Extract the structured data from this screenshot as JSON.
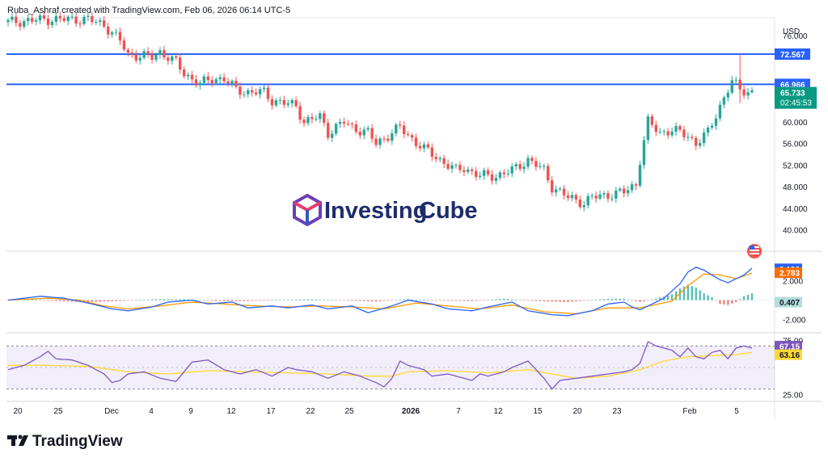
{
  "attribution": "Ruba_Ashraf created with TradingView.com, Feb 06, 2026 06:14 UTC-5",
  "currency": "USD",
  "watermark": {
    "brand_part1": "Investing",
    "brand_part2": "Cube"
  },
  "footer_logo": "TradingView",
  "colors": {
    "up": "#26a69a",
    "down": "#ef5350",
    "hline": "#2962ff",
    "macd": "#2962ff",
    "signal": "#ff9800",
    "rsi": "#7e57c2",
    "rsi_ma": "#fdd835",
    "price_tag": "#089981"
  },
  "chart_data": [
    {
      "type": "candlestick",
      "y_ticks": [
        "76.000",
        "60.000",
        "56.000",
        "52.000",
        "48.000",
        "44.000",
        "40.000"
      ],
      "ylim": [
        36.5,
        79
      ],
      "x_tick_labels": [
        "20",
        "25",
        "Dec",
        "4",
        "9",
        "12",
        "17",
        "22",
        "25",
        "2026",
        "7",
        "12",
        "15",
        "20",
        "23",
        "Feb",
        "5"
      ],
      "horizontal_lines": [
        {
          "value": 72.567,
          "label": "72.567"
        },
        {
          "value": 66.966,
          "label": "66.966"
        }
      ],
      "last_price": {
        "value": 65.733,
        "label": "65.733",
        "countdown": "02:45:53"
      },
      "close_path": [
        [
          0,
          78.5
        ],
        [
          10,
          79
        ],
        [
          20,
          79
        ],
        [
          24,
          78
        ],
        [
          28,
          75
        ],
        [
          30,
          72.5
        ],
        [
          36,
          72
        ],
        [
          38,
          73
        ],
        [
          42,
          71
        ],
        [
          44,
          69
        ],
        [
          48,
          67
        ],
        [
          51,
          68
        ],
        [
          54,
          68
        ],
        [
          57,
          66
        ],
        [
          60,
          65.5
        ],
        [
          64,
          65.5
        ],
        [
          66,
          64
        ],
        [
          72,
          63
        ],
        [
          74,
          60
        ],
        [
          78,
          61
        ],
        [
          80,
          58
        ],
        [
          84,
          60
        ],
        [
          86,
          59
        ],
        [
          90,
          58
        ],
        [
          92,
          56
        ],
        [
          96,
          58
        ],
        [
          98,
          59
        ],
        [
          100,
          57.5
        ],
        [
          104,
          55
        ],
        [
          108,
          53
        ],
        [
          112,
          51
        ],
        [
          114,
          51.5
        ],
        [
          118,
          50
        ],
        [
          122,
          50
        ],
        [
          126,
          51
        ],
        [
          130,
          53
        ],
        [
          134,
          51
        ],
        [
          136,
          48
        ],
        [
          140,
          46
        ],
        [
          144,
          45
        ],
        [
          146,
          46
        ],
        [
          150,
          46.5
        ],
        [
          154,
          47
        ],
        [
          157,
          48.5
        ],
        [
          158,
          53
        ],
        [
          160,
          60
        ],
        [
          163,
          58
        ],
        [
          166,
          58.5
        ],
        [
          170,
          57.5
        ],
        [
          172,
          56
        ],
        [
          175,
          58
        ],
        [
          178,
          63
        ],
        [
          181,
          67.5
        ],
        [
          183,
          66
        ],
        [
          186,
          65.5
        ]
      ]
    },
    {
      "type": "line",
      "name": "MACD",
      "y_ticks": [
        "2.000",
        "-2.000"
      ],
      "ylim": [
        -3.2,
        4.8
      ],
      "tags": {
        "macd": "3.190",
        "signal": "2.783",
        "histogram": "0.407"
      },
      "macd_path": [
        [
          0,
          0
        ],
        [
          8,
          0.4
        ],
        [
          14,
          0.2
        ],
        [
          20,
          -0.3
        ],
        [
          26,
          -0.9
        ],
        [
          30,
          -1.1
        ],
        [
          36,
          -0.7
        ],
        [
          40,
          -0.2
        ],
        [
          46,
          0.0
        ],
        [
          50,
          -0.4
        ],
        [
          56,
          -0.2
        ],
        [
          60,
          -0.8
        ],
        [
          66,
          -0.6
        ],
        [
          70,
          -0.8
        ],
        [
          76,
          -0.5
        ],
        [
          80,
          -0.9
        ],
        [
          86,
          -0.6
        ],
        [
          90,
          -1.3
        ],
        [
          96,
          -0.6
        ],
        [
          100,
          0.0
        ],
        [
          106,
          -0.4
        ],
        [
          110,
          -0.9
        ],
        [
          116,
          -1.1
        ],
        [
          120,
          -0.7
        ],
        [
          126,
          -0.2
        ],
        [
          130,
          -1.1
        ],
        [
          136,
          -1.5
        ],
        [
          140,
          -1.6
        ],
        [
          146,
          -1.1
        ],
        [
          150,
          -0.4
        ],
        [
          154,
          -0.2
        ],
        [
          156,
          -0.7
        ],
        [
          158,
          -1.0
        ],
        [
          160,
          -0.6
        ],
        [
          164,
          0.2
        ],
        [
          168,
          1.7
        ],
        [
          170,
          2.9
        ],
        [
          172,
          3.4
        ],
        [
          174,
          3.1
        ],
        [
          178,
          2.1
        ],
        [
          180,
          1.8
        ],
        [
          184,
          2.6
        ],
        [
          186,
          3.3
        ]
      ],
      "signal_path": [
        [
          0,
          0
        ],
        [
          10,
          0.2
        ],
        [
          18,
          0.0
        ],
        [
          24,
          -0.6
        ],
        [
          30,
          -0.9
        ],
        [
          38,
          -0.6
        ],
        [
          46,
          -0.2
        ],
        [
          54,
          -0.4
        ],
        [
          62,
          -0.6
        ],
        [
          70,
          -0.7
        ],
        [
          78,
          -0.6
        ],
        [
          86,
          -0.7
        ],
        [
          94,
          -0.9
        ],
        [
          102,
          -0.3
        ],
        [
          110,
          -0.6
        ],
        [
          118,
          -0.9
        ],
        [
          126,
          -0.5
        ],
        [
          134,
          -1.2
        ],
        [
          142,
          -1.4
        ],
        [
          150,
          -0.8
        ],
        [
          158,
          -0.8
        ],
        [
          166,
          -0.1
        ],
        [
          170,
          1.5
        ],
        [
          174,
          2.7
        ],
        [
          178,
          2.6
        ],
        [
          182,
          2.2
        ],
        [
          186,
          2.8
        ]
      ],
      "histogram_path": [
        [
          0,
          0
        ],
        [
          6,
          0.1
        ],
        [
          12,
          -0.1
        ],
        [
          20,
          -0.2
        ],
        [
          28,
          -0.1
        ],
        [
          36,
          0.1
        ],
        [
          44,
          0.1
        ],
        [
          52,
          -0.1
        ],
        [
          60,
          -0.1
        ],
        [
          68,
          0.05
        ],
        [
          76,
          0.1
        ],
        [
          84,
          -0.05
        ],
        [
          92,
          -0.15
        ],
        [
          100,
          0.1
        ],
        [
          108,
          -0.05
        ],
        [
          116,
          -0.1
        ],
        [
          124,
          0.15
        ],
        [
          132,
          -0.1
        ],
        [
          140,
          -0.2
        ],
        [
          148,
          0.1
        ],
        [
          154,
          0.15
        ],
        [
          158,
          -0.2
        ],
        [
          162,
          0.15
        ],
        [
          166,
          0.6
        ],
        [
          168,
          1.2
        ],
        [
          170,
          1.6
        ],
        [
          172,
          1.3
        ],
        [
          174,
          0.7
        ],
        [
          176,
          0.3
        ],
        [
          178,
          -0.4
        ],
        [
          180,
          -0.5
        ],
        [
          182,
          -0.2
        ],
        [
          184,
          0.4
        ],
        [
          186,
          0.7
        ]
      ]
    },
    {
      "type": "line",
      "name": "RSI",
      "y_ticks": [
        "75.00",
        "25.00"
      ],
      "ylim": [
        20,
        80
      ],
      "band": [
        30,
        70
      ],
      "tags": {
        "rsi": "67.15",
        "rsi_ma": "63.16"
      },
      "rsi_path": [
        [
          0,
          48
        ],
        [
          4,
          52
        ],
        [
          8,
          60
        ],
        [
          10,
          65
        ],
        [
          12,
          58
        ],
        [
          16,
          57
        ],
        [
          20,
          52
        ],
        [
          24,
          44
        ],
        [
          26,
          36
        ],
        [
          28,
          38
        ],
        [
          30,
          44
        ],
        [
          34,
          46
        ],
        [
          38,
          40
        ],
        [
          42,
          37
        ],
        [
          46,
          55
        ],
        [
          50,
          57
        ],
        [
          54,
          48
        ],
        [
          58,
          44
        ],
        [
          62,
          48
        ],
        [
          66,
          42
        ],
        [
          70,
          50
        ],
        [
          72,
          48
        ],
        [
          76,
          46
        ],
        [
          80,
          40
        ],
        [
          84,
          46
        ],
        [
          88,
          42
        ],
        [
          92,
          36
        ],
        [
          94,
          32
        ],
        [
          96,
          40
        ],
        [
          98,
          56
        ],
        [
          100,
          52
        ],
        [
          104,
          48
        ],
        [
          106,
          42
        ],
        [
          110,
          44
        ],
        [
          114,
          40
        ],
        [
          116,
          38
        ],
        [
          118,
          44
        ],
        [
          120,
          42
        ],
        [
          124,
          46
        ],
        [
          126,
          50
        ],
        [
          130,
          56
        ],
        [
          134,
          40
        ],
        [
          136,
          30
        ],
        [
          138,
          38
        ],
        [
          142,
          40
        ],
        [
          146,
          42
        ],
        [
          150,
          44
        ],
        [
          154,
          46
        ],
        [
          156,
          48
        ],
        [
          158,
          54
        ],
        [
          160,
          74
        ],
        [
          162,
          70
        ],
        [
          164,
          68
        ],
        [
          166,
          66
        ],
        [
          168,
          60
        ],
        [
          170,
          68
        ],
        [
          172,
          60
        ],
        [
          174,
          58
        ],
        [
          176,
          64
        ],
        [
          178,
          66
        ],
        [
          180,
          58
        ],
        [
          182,
          68
        ],
        [
          184,
          70
        ],
        [
          186,
          68
        ]
      ],
      "rsi_ma_path": [
        [
          0,
          52
        ],
        [
          10,
          52
        ],
        [
          20,
          51
        ],
        [
          30,
          46
        ],
        [
          40,
          44
        ],
        [
          50,
          47
        ],
        [
          60,
          46
        ],
        [
          70,
          45
        ],
        [
          80,
          44
        ],
        [
          90,
          42
        ],
        [
          96,
          42
        ],
        [
          100,
          46
        ],
        [
          110,
          47
        ],
        [
          120,
          45
        ],
        [
          130,
          48
        ],
        [
          136,
          44
        ],
        [
          142,
          40
        ],
        [
          150,
          42
        ],
        [
          158,
          48
        ],
        [
          164,
          56
        ],
        [
          170,
          60
        ],
        [
          176,
          61
        ],
        [
          182,
          62
        ],
        [
          186,
          64
        ]
      ]
    }
  ]
}
